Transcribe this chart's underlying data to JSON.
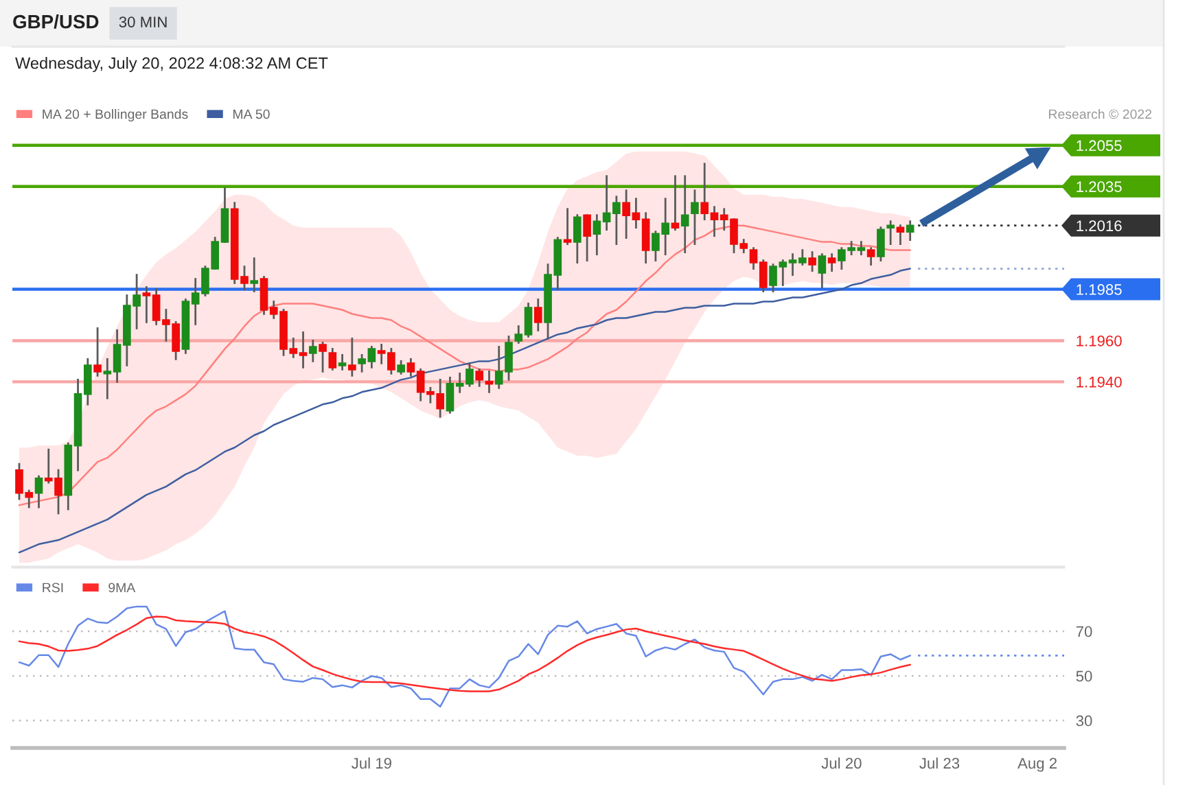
{
  "chart_data": [
    {
      "type": "candlestick",
      "title": "GBP/USD",
      "subtitle": "Wednesday, July 20, 2022 4:08:32 AM CET",
      "annotations": [
        "30 MIN",
        "Research © 2022"
      ],
      "categories": [
        null,
        null,
        null,
        null,
        null,
        null,
        null,
        null,
        null,
        null,
        null,
        null,
        null,
        null,
        null,
        null,
        null,
        null,
        null,
        null,
        null,
        null,
        null,
        null,
        null,
        null,
        null,
        null,
        null,
        null,
        null,
        null,
        null,
        null,
        null,
        null,
        null,
        null,
        null,
        null,
        null,
        null,
        null,
        null,
        null,
        null,
        null,
        null,
        null,
        null,
        null,
        null,
        null,
        null,
        null,
        null,
        null,
        null,
        null,
        null,
        null,
        null,
        null,
        null,
        null,
        null,
        null,
        null,
        null,
        null,
        null,
        null,
        null,
        null,
        null,
        null,
        null,
        null,
        null,
        null,
        null,
        null,
        null,
        null,
        null,
        null,
        null,
        null,
        null,
        null,
        null,
        null,
        null,
        null,
        null,
        null,
        null,
        null,
        null,
        null,
        null,
        null,
        null,
        null,
        null,
        null,
        null
      ],
      "ohlc": [
        [
          1.1897,
          1.19,
          1.1883,
          1.1886
        ],
        [
          1.1886,
          1.1887,
          1.1879,
          1.1884
        ],
        [
          1.1886,
          1.1894,
          1.1879,
          1.1893
        ],
        [
          1.1893,
          1.1907,
          1.1891,
          1.1892
        ],
        [
          1.1893,
          1.1897,
          1.1876,
          1.1885
        ],
        [
          1.1885,
          1.191,
          1.1878,
          1.1909
        ],
        [
          1.1909,
          1.1941,
          1.1897,
          1.1934
        ],
        [
          1.1934,
          1.1951,
          1.1929,
          1.1948
        ],
        [
          1.1948,
          1.1966,
          1.1943,
          1.1945
        ],
        [
          1.1944,
          1.1951,
          1.1932,
          1.1945
        ],
        [
          1.1945,
          1.1965,
          1.194,
          1.1958
        ],
        [
          1.1958,
          1.1982,
          1.1948,
          1.1977
        ],
        [
          1.1977,
          1.1992,
          1.1966,
          1.1982
        ],
        [
          1.1983,
          1.1986,
          1.1969,
          1.1982
        ],
        [
          1.1982,
          1.1985,
          1.1968,
          1.197
        ],
        [
          1.197,
          1.1975,
          1.196,
          1.1968
        ],
        [
          1.1968,
          1.1969,
          1.1951,
          1.1955
        ],
        [
          1.1956,
          1.198,
          1.1954,
          1.1979
        ],
        [
          1.1978,
          1.199,
          1.1968,
          1.1983
        ],
        [
          1.1983,
          1.1996,
          1.1982,
          1.1995
        ],
        [
          1.1995,
          1.201,
          1.1995,
          1.2008
        ],
        [
          1.2008,
          1.2034,
          1.2008,
          1.2024
        ],
        [
          1.2024,
          1.2027,
          1.1988,
          1.199
        ],
        [
          1.1991,
          1.1996,
          1.1985,
          1.1988
        ],
        [
          1.1988,
          1.2,
          1.1984,
          1.1989
        ],
        [
          1.199,
          1.1991,
          1.1973,
          1.1975
        ],
        [
          1.1976,
          1.1979,
          1.1971,
          1.1973
        ],
        [
          1.1974,
          1.1975,
          1.1953,
          1.1956
        ],
        [
          1.1956,
          1.1961,
          1.1952,
          1.1954
        ],
        [
          1.1954,
          1.1964,
          1.1947,
          1.1953
        ],
        [
          1.1954,
          1.196,
          1.195,
          1.1957
        ],
        [
          1.1958,
          1.1959,
          1.1945,
          1.1955
        ],
        [
          1.1954,
          1.1956,
          1.1946,
          1.1947
        ],
        [
          1.1948,
          1.1953,
          1.1946,
          1.1949
        ],
        [
          1.1948,
          1.1961,
          1.1943,
          1.1946
        ],
        [
          1.1949,
          1.1953,
          1.1945,
          1.1951
        ],
        [
          1.195,
          1.1957,
          1.1947,
          1.1956
        ],
        [
          1.1955,
          1.1958,
          1.1949,
          1.1954
        ],
        [
          1.1954,
          1.1956,
          1.1944,
          1.1946
        ],
        [
          1.1945,
          1.195,
          1.1944,
          1.1948
        ],
        [
          1.1949,
          1.1951,
          1.1943,
          1.1945
        ],
        [
          1.1945,
          1.1946,
          1.1931,
          1.1935
        ],
        [
          1.1935,
          1.1937,
          1.193,
          1.1934
        ],
        [
          1.1934,
          1.1941,
          1.1923,
          1.1927
        ],
        [
          1.1926,
          1.1942,
          1.1925,
          1.1939
        ],
        [
          1.1938,
          1.1944,
          1.1935,
          1.1939
        ],
        [
          1.1939,
          1.1949,
          1.1938,
          1.1946
        ],
        [
          1.1945,
          1.1946,
          1.1938,
          1.1941
        ],
        [
          1.194,
          1.1945,
          1.1935,
          1.1939
        ],
        [
          1.1939,
          1.1957,
          1.1937,
          1.1945
        ],
        [
          1.1945,
          1.1962,
          1.1941,
          1.1959
        ],
        [
          1.196,
          1.1967,
          1.1959,
          1.1963
        ],
        [
          1.1963,
          1.1978,
          1.1962,
          1.1976
        ],
        [
          1.1976,
          1.198,
          1.1965,
          1.1969
        ],
        [
          1.1969,
          1.1997,
          1.1961,
          1.1992
        ],
        [
          1.1992,
          1.201,
          1.1985,
          1.2009
        ],
        [
          1.2009,
          1.2024,
          1.2007,
          1.2008
        ],
        [
          1.2008,
          1.2021,
          1.1998,
          1.202
        ],
        [
          1.2021,
          1.2021,
          1.1999,
          1.2011
        ],
        [
          1.2012,
          1.2021,
          1.2002,
          1.2018
        ],
        [
          1.2018,
          1.204,
          1.2014,
          1.2022
        ],
        [
          1.2022,
          1.203,
          1.2007,
          1.2027
        ],
        [
          1.2027,
          1.2033,
          1.201,
          1.2021
        ],
        [
          1.2022,
          1.2029,
          1.2015,
          1.2019
        ],
        [
          1.2019,
          1.2022,
          1.1998,
          1.2004
        ],
        [
          1.2004,
          1.2013,
          1.1999,
          1.2012
        ],
        [
          1.2012,
          1.2029,
          1.2002,
          1.2017
        ],
        [
          1.2017,
          1.204,
          1.2014,
          1.2015
        ],
        [
          1.2016,
          1.204,
          1.2003,
          1.2021
        ],
        [
          1.2022,
          1.2033,
          1.2007,
          1.2027
        ],
        [
          1.2027,
          1.2046,
          1.2019,
          1.2022
        ],
        [
          1.2022,
          1.2025,
          1.2011,
          1.2019
        ],
        [
          1.2021,
          1.2024,
          1.2014,
          1.2019
        ],
        [
          1.2019,
          1.2019,
          1.2003,
          1.2007
        ],
        [
          1.2007,
          1.2009,
          1.2003,
          1.2005
        ],
        [
          1.2004,
          1.2005,
          1.1995,
          1.1998
        ],
        [
          1.1998,
          1.1999,
          1.1984,
          1.1986
        ],
        [
          1.1987,
          1.1997,
          1.1984,
          1.1996
        ],
        [
          1.1996,
          1.1999,
          1.1987,
          1.1998
        ],
        [
          1.1998,
          1.2002,
          1.1992,
          1.1999
        ],
        [
          1.1998,
          1.2004,
          1.1997,
          1.2
        ],
        [
          1.2,
          1.2003,
          1.1994,
          1.1997
        ],
        [
          1.1993,
          1.2002,
          1.1986,
          1.2001
        ],
        [
          1.2,
          1.2002,
          1.1994,
          1.1998
        ],
        [
          1.1999,
          1.2005,
          1.1995,
          1.2004
        ],
        [
          1.2004,
          1.2008,
          1.2002,
          1.2005
        ],
        [
          1.2004,
          1.2008,
          1.2002,
          1.2005
        ],
        [
          1.2004,
          1.2005,
          1.1997,
          1.2001
        ],
        [
          1.2001,
          1.2015,
          1.1999,
          1.2014
        ],
        [
          1.2015,
          1.2018,
          1.2007,
          1.2016
        ],
        [
          1.2015,
          1.2016,
          1.2007,
          1.2013
        ],
        [
          1.2013,
          1.2018,
          1.2009,
          1.2016
        ],
        null,
        null,
        null,
        null,
        null,
        null,
        null,
        null,
        null,
        null,
        null,
        null,
        null,
        null,
        null
      ],
      "colors": [
        "#f00a0a",
        "#f00a0a",
        "#1c8c1c",
        "#f00a0a",
        "#f00a0a",
        "#1c8c1c",
        "#1c8c1c",
        "#1c8c1c",
        "#f00a0a",
        "#1c8c1c",
        "#1c8c1c",
        "#1c8c1c",
        "#1c8c1c",
        "#f00a0a",
        "#f00a0a",
        "#f00a0a",
        "#f00a0a",
        "#1c8c1c",
        "#1c8c1c",
        "#1c8c1c",
        "#1c8c1c",
        "#1c8c1c",
        "#f00a0a",
        "#f00a0a",
        "#1c8c1c",
        "#f00a0a",
        "#f00a0a",
        "#f00a0a",
        "#f00a0a",
        "#f00a0a",
        "#1c8c1c",
        "#f00a0a",
        "#f00a0a",
        "#1c8c1c",
        "#f00a0a",
        "#1c8c1c",
        "#1c8c1c",
        "#f00a0a",
        "#f00a0a",
        "#1c8c1c",
        "#f00a0a",
        "#f00a0a",
        "#f00a0a",
        "#f00a0a",
        "#1c8c1c",
        "#1c8c1c",
        "#1c8c1c",
        "#f00a0a",
        "#f00a0a",
        "#1c8c1c",
        "#1c8c1c",
        "#1c8c1c",
        "#1c8c1c",
        "#f00a0a",
        "#1c8c1c",
        "#1c8c1c",
        "#f00a0a",
        "#1c8c1c",
        "#f00a0a",
        "#1c8c1c",
        "#1c8c1c",
        "#1c8c1c",
        "#f00a0a",
        "#f00a0a",
        "#f00a0a",
        "#1c8c1c",
        "#1c8c1c",
        "#f00a0a",
        "#1c8c1c",
        "#1c8c1c",
        "#f00a0a",
        "#f00a0a",
        "#f00a0a",
        "#f00a0a",
        "#f00a0a",
        "#f00a0a",
        "#f00a0a",
        "#1c8c1c",
        "#1c8c1c",
        "#1c8c1c",
        "#1c8c1c",
        "#f00a0a",
        "#1c8c1c",
        "#f00a0a",
        "#1c8c1c",
        "#1c8c1c",
        "#1c8c1c",
        "#f00a0a",
        "#1c8c1c",
        "#1c8c1c",
        "#f00a0a",
        "#1c8c1c",
        null,
        null,
        null,
        null,
        null,
        null,
        null,
        null,
        null,
        null,
        null,
        null,
        null,
        null,
        null
      ],
      "series": [
        {
          "name": "MA 20 + Bollinger Bands",
          "type": "line",
          "color": "#ff7f7f",
          "values": [
            1.188,
            1.1881,
            1.1882,
            1.1883,
            1.1884,
            1.1886,
            1.1891,
            1.1896,
            1.1901,
            1.1903,
            1.1907,
            1.1912,
            1.1917,
            1.1922,
            1.1926,
            1.1928,
            1.1931,
            1.1934,
            1.1938,
            1.1944,
            1.195,
            1.1956,
            1.1961,
            1.1967,
            1.1972,
            1.1975,
            1.1977,
            1.1978,
            1.1978,
            1.1978,
            1.1978,
            1.1977,
            1.1976,
            1.1975,
            1.1973,
            1.1972,
            1.1971,
            1.1971,
            1.197,
            1.1967,
            1.1965,
            1.1962,
            1.1959,
            1.1956,
            1.1953,
            1.195,
            1.1948,
            1.1946,
            1.1946,
            1.1945,
            1.1946,
            1.1946,
            1.1947,
            1.1949,
            1.1951,
            1.1954,
            1.1957,
            1.1961,
            1.1964,
            1.1969,
            1.1973,
            1.1975,
            1.1979,
            1.1984,
            1.1989,
            1.1993,
            1.1998,
            1.2002,
            1.2005,
            1.2009,
            1.2011,
            1.2014,
            1.2015,
            1.2016,
            1.2016,
            1.2015,
            1.2014,
            1.2013,
            1.2012,
            1.2011,
            1.201,
            1.2009,
            1.2008,
            1.2008,
            1.2007,
            1.2007,
            1.2006,
            1.2006,
            1.2005,
            1.2004,
            1.2004,
            1.2004,
            null,
            null,
            null,
            null,
            null,
            null,
            null,
            null,
            null,
            null,
            null,
            null,
            null,
            null,
            null
          ],
          "lower": [
            1.1852,
            1.1852,
            1.1853,
            1.1854,
            1.1857,
            1.1859,
            1.1861,
            1.1859,
            1.1857,
            1.1854,
            1.1853,
            1.1853,
            1.1853,
            1.1854,
            1.1856,
            1.1858,
            1.1861,
            1.1863,
            1.1866,
            1.187,
            1.1875,
            1.1882,
            1.1889,
            1.1899,
            1.1908,
            1.192,
            1.1927,
            1.1934,
            1.1938,
            1.194,
            1.1941,
            1.1942,
            1.1941,
            1.1941,
            1.194,
            1.194,
            1.1939,
            1.1937,
            1.1935,
            1.1932,
            1.1929,
            1.1926,
            1.1924,
            1.1922,
            1.1925,
            1.1928,
            1.193,
            1.1931,
            1.193,
            1.1928,
            1.1927,
            1.1926,
            1.1923,
            1.192,
            1.1914,
            1.1908,
            1.1906,
            1.1904,
            1.1904,
            1.1903,
            1.1904,
            1.1905,
            1.1911,
            1.1917,
            1.1925,
            1.1933,
            1.1941,
            1.195,
            1.1959,
            1.1966,
            1.1974,
            1.198,
            1.1985,
            1.1989,
            1.1991,
            1.199,
            1.1987,
            1.1986,
            1.1987,
            1.1988,
            1.1989,
            1.1988,
            1.1988,
            1.1987,
            1.1988,
            1.1988,
            1.1987,
            1.1987,
            1.1986,
            1.1986,
            1.1986,
            1.1986,
            null,
            null,
            null,
            null,
            null,
            null,
            null,
            null,
            null,
            null,
            null,
            null,
            null,
            null,
            null
          ],
          "upper": [
            1.1908,
            1.1908,
            1.1909,
            1.1909,
            1.1909,
            1.1911,
            1.192,
            1.1933,
            1.1946,
            1.1957,
            1.1967,
            1.1976,
            1.1985,
            1.1992,
            1.1998,
            1.2002,
            1.2005,
            1.2009,
            1.2013,
            1.2018,
            1.2023,
            1.2029,
            1.2031,
            1.2031,
            1.203,
            1.2027,
            1.2022,
            1.2019,
            1.2016,
            1.2015,
            1.2015,
            1.2015,
            1.2015,
            1.2015,
            1.2015,
            1.2015,
            1.2015,
            1.2015,
            1.2015,
            1.2011,
            1.2003,
            1.1993,
            1.1985,
            1.198,
            1.1975,
            1.1972,
            1.197,
            1.1969,
            1.1969,
            1.1969,
            1.1973,
            1.1977,
            1.1985,
            1.1998,
            1.2013,
            1.2025,
            1.2034,
            1.2038,
            1.204,
            1.2042,
            1.2043,
            1.2047,
            1.2051,
            1.2052,
            1.2052,
            1.2052,
            1.2052,
            1.2052,
            1.2052,
            1.2051,
            1.205,
            1.2045,
            1.204,
            1.2034,
            1.2031,
            1.2031,
            1.2031,
            1.203,
            1.203,
            1.2029,
            1.2029,
            1.2028,
            1.2027,
            1.2026,
            1.2025,
            1.2025,
            1.2024,
            1.2023,
            1.2022,
            1.2022,
            1.2021,
            1.202,
            null,
            null,
            null,
            null,
            null,
            null,
            null,
            null,
            null,
            null,
            null,
            null,
            null,
            null,
            null
          ]
        },
        {
          "name": "MA 50",
          "type": "line",
          "color": "#3e5ea0",
          "values": [
            1.1857,
            1.1859,
            1.1861,
            1.1862,
            1.1863,
            1.1865,
            1.1867,
            1.1869,
            1.1871,
            1.1873,
            1.1876,
            1.1879,
            1.1882,
            1.1885,
            1.1887,
            1.1889,
            1.1892,
            1.1895,
            1.1897,
            1.19,
            1.1903,
            1.1906,
            1.1908,
            1.1911,
            1.1914,
            1.1916,
            1.1919,
            1.1921,
            1.1923,
            1.1925,
            1.1927,
            1.1929,
            1.193,
            1.1932,
            1.1933,
            1.1935,
            1.1936,
            1.1937,
            1.1939,
            1.1941,
            1.1942,
            1.1944,
            1.1945,
            1.1946,
            1.1947,
            1.1948,
            1.1949,
            1.195,
            1.195,
            1.1951,
            1.1953,
            1.1955,
            1.1957,
            1.1959,
            1.1961,
            1.1963,
            1.1964,
            1.1966,
            1.1967,
            1.1968,
            1.197,
            1.1971,
            1.1971,
            1.1972,
            1.1973,
            1.1974,
            1.1974,
            1.1975,
            1.1976,
            1.1976,
            1.1977,
            1.1977,
            1.1977,
            1.1978,
            1.1978,
            1.1978,
            1.1979,
            1.1979,
            1.198,
            1.1981,
            1.1981,
            1.1982,
            1.1983,
            1.1984,
            1.1985,
            1.1987,
            1.1988,
            1.199,
            1.1991,
            1.1992,
            1.1994,
            1.1995,
            null,
            null,
            null,
            null,
            null,
            null,
            null,
            null,
            null,
            null,
            null,
            null,
            null,
            null,
            null
          ]
        }
      ],
      "ylim": [
        1.185,
        1.2103
      ],
      "yticks": [
        {
          "value": 1.194,
          "label": "1.1940"
        },
        {
          "value": 1.196,
          "label": "1.1960"
        },
        1.1985,
        1.2016,
        1.2035,
        1.2055
      ],
      "ref_lines": [
        {
          "axis": "y",
          "value": 1.2055,
          "color": "#4aa600",
          "line_style": "solid"
        },
        {
          "axis": "y",
          "value": 1.2035,
          "color": "#4aa600",
          "line_style": "solid"
        },
        {
          "axis": "y",
          "value": 1.2016,
          "color": "#333333",
          "line_style": "dotted"
        },
        {
          "axis": "y",
          "value": 1.1995,
          "color": "#8ea8d8",
          "line_style": "dotted"
        },
        {
          "axis": "y",
          "value": 1.1985,
          "color": "#2a6ff0",
          "line_style": "solid"
        },
        {
          "axis": "y",
          "value": 1.196,
          "color": "#f9a5a5",
          "line_style": "solid"
        },
        {
          "axis": "y",
          "value": 1.194,
          "color": "#f9a5a5",
          "line_style": "solid"
        }
      ],
      "legend": "top left",
      "tick_labels": "y",
      "grid": false
    },
    {
      "type": "line",
      "categories": [
        null,
        null,
        null,
        null,
        null,
        null,
        null,
        null,
        null,
        null,
        null,
        null,
        null,
        null,
        null,
        null,
        null,
        null,
        null,
        null,
        null,
        null,
        null,
        null,
        null,
        null,
        null,
        null,
        null,
        null,
        null,
        null,
        null,
        null,
        null,
        null,
        "Jul 19",
        null,
        null,
        null,
        null,
        null,
        null,
        null,
        null,
        null,
        null,
        null,
        null,
        null,
        null,
        null,
        null,
        null,
        null,
        null,
        null,
        null,
        null,
        null,
        null,
        null,
        null,
        null,
        null,
        null,
        null,
        null,
        null,
        null,
        null,
        null,
        null,
        null,
        null,
        null,
        null,
        null,
        null,
        null,
        null,
        null,
        null,
        null,
        "Jul 20",
        null,
        null,
        null,
        null,
        null,
        null,
        null,
        null,
        null,
        "Jul 23",
        null,
        null,
        null,
        null,
        null,
        null,
        null,
        null,
        null,
        "Aug 2",
        null,
        null
      ],
      "series": [
        {
          "name": "RSI",
          "color": "#6688e6",
          "values": [
            56.1,
            54.6,
            59.3,
            59.3,
            54.0,
            64.3,
            72.5,
            75.7,
            74.1,
            73.7,
            76.6,
            80.3,
            81.1,
            81.1,
            73.1,
            71.0,
            63.4,
            69.6,
            71.0,
            74.1,
            76.6,
            79.0,
            62.4,
            61.8,
            61.8,
            56.1,
            55.2,
            48.5,
            47.8,
            47.4,
            49.1,
            48.5,
            45.0,
            45.8,
            44.8,
            47.8,
            49.9,
            49.1,
            45.0,
            45.8,
            44.4,
            39.6,
            39.6,
            36.2,
            44.4,
            44.4,
            48.5,
            45.8,
            44.8,
            49.1,
            56.7,
            58.7,
            64.3,
            59.7,
            68.4,
            72.5,
            72.1,
            74.5,
            69.0,
            71.0,
            72.1,
            73.3,
            69.0,
            68.0,
            58.7,
            61.4,
            62.8,
            61.8,
            64.3,
            66.3,
            62.8,
            61.4,
            60.8,
            53.6,
            51.9,
            47.0,
            41.7,
            47.4,
            48.5,
            48.5,
            49.5,
            47.8,
            50.5,
            48.5,
            52.6,
            52.6,
            53.0,
            50.5,
            58.7,
            59.7,
            57.3,
            59.1,
            null,
            null,
            null,
            null,
            null,
            null,
            null,
            null,
            null,
            null,
            null,
            null,
            null,
            null,
            null
          ]
        },
        {
          "name": "9MA",
          "color": "#ff2a2a",
          "values": [
            65.5,
            64.7,
            64.3,
            63.2,
            61.4,
            61.2,
            61.6,
            62.2,
            63.4,
            65.9,
            68.4,
            70.6,
            73.1,
            75.9,
            76.6,
            76.4,
            74.9,
            74.5,
            74.3,
            74.1,
            73.9,
            73.3,
            71.2,
            69.6,
            68.8,
            67.7,
            65.9,
            63.2,
            60.2,
            57.1,
            54.2,
            52.6,
            50.9,
            49.5,
            48.3,
            47.4,
            47.2,
            47.2,
            47.0,
            46.6,
            46.0,
            45.4,
            44.8,
            44.2,
            43.7,
            43.3,
            43.1,
            43.1,
            43.1,
            43.9,
            45.8,
            47.8,
            50.7,
            52.6,
            55.2,
            58.1,
            61.2,
            63.8,
            65.9,
            67.3,
            68.4,
            69.6,
            70.8,
            71.2,
            70.0,
            69.0,
            68.0,
            67.1,
            65.9,
            65.1,
            64.3,
            63.2,
            62.4,
            61.8,
            61.2,
            59.3,
            57.3,
            55.2,
            53.2,
            51.5,
            50.1,
            48.7,
            48.3,
            47.8,
            48.5,
            49.5,
            50.3,
            50.7,
            51.5,
            52.8,
            54.0,
            55.0,
            null,
            null,
            null,
            null,
            null,
            null,
            null,
            null,
            null,
            null,
            null,
            null,
            null,
            null,
            null
          ]
        }
      ],
      "ylim": [
        17.7,
        98.6
      ],
      "yticks": [
        30,
        50,
        70
      ],
      "grid": "y",
      "legend": "top left",
      "ref_lines": [
        {
          "axis": "y",
          "value": 59.1,
          "color": "#6688e6",
          "line_style": "dotted"
        }
      ]
    }
  ]
}
